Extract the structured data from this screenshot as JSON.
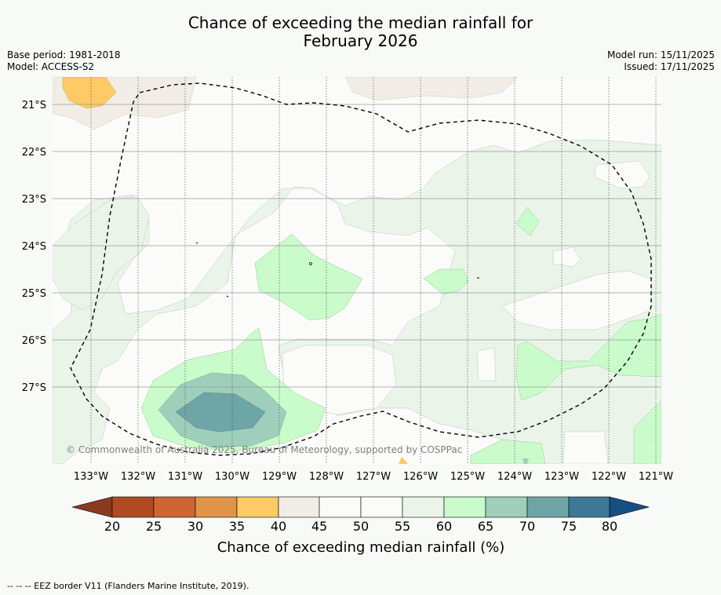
{
  "title_line1": "Chance of exceeding the median rainfall for",
  "title_line2": "February 2026",
  "base_period": "Base period: 1981-2018",
  "model": "Model: ACCESS-S2",
  "model_run": "Model run: 15/11/2025",
  "issued": "Issued: 17/11/2025",
  "copyright": "© Commonwealth of Australia 2025, Bureau of Meteorology, supported by COSPPac",
  "footer": "--  --  -- EEZ border V11 (Flanders Marine Institute, 2019).",
  "lat_labels": [
    "21°S",
    "22°S",
    "23°S",
    "24°S",
    "25°S",
    "26°S",
    "27°S"
  ],
  "lon_labels": [
    "133°W",
    "132°W",
    "131°W",
    "130°W",
    "129°W",
    "128°W",
    "127°W",
    "126°W",
    "125°W",
    "124°W",
    "123°W",
    "122°W",
    "121°W"
  ],
  "colorbar": {
    "label": "Chance of exceeding median rainfall (%)",
    "ticks": [
      "20",
      "25",
      "30",
      "35",
      "40",
      "45",
      "50",
      "55",
      "60",
      "65",
      "70",
      "75",
      "80"
    ],
    "colors": {
      "below_20": "#8b3a1f",
      "20_25": "#b04a22",
      "25_30": "#cf6534",
      "30_35": "#e09448",
      "35_40": "#fdca66",
      "40_45": "#f1ede6",
      "45_50": "#fbfcfa",
      "50_55": "#fbfcfa",
      "55_60": "#eaf4e9",
      "60_65": "#cafbcb",
      "65_70": "#9fcfba",
      "70_75": "#6ea5a7",
      "75_80": "#3f7896",
      "above_80": "#174f82"
    }
  }
}
